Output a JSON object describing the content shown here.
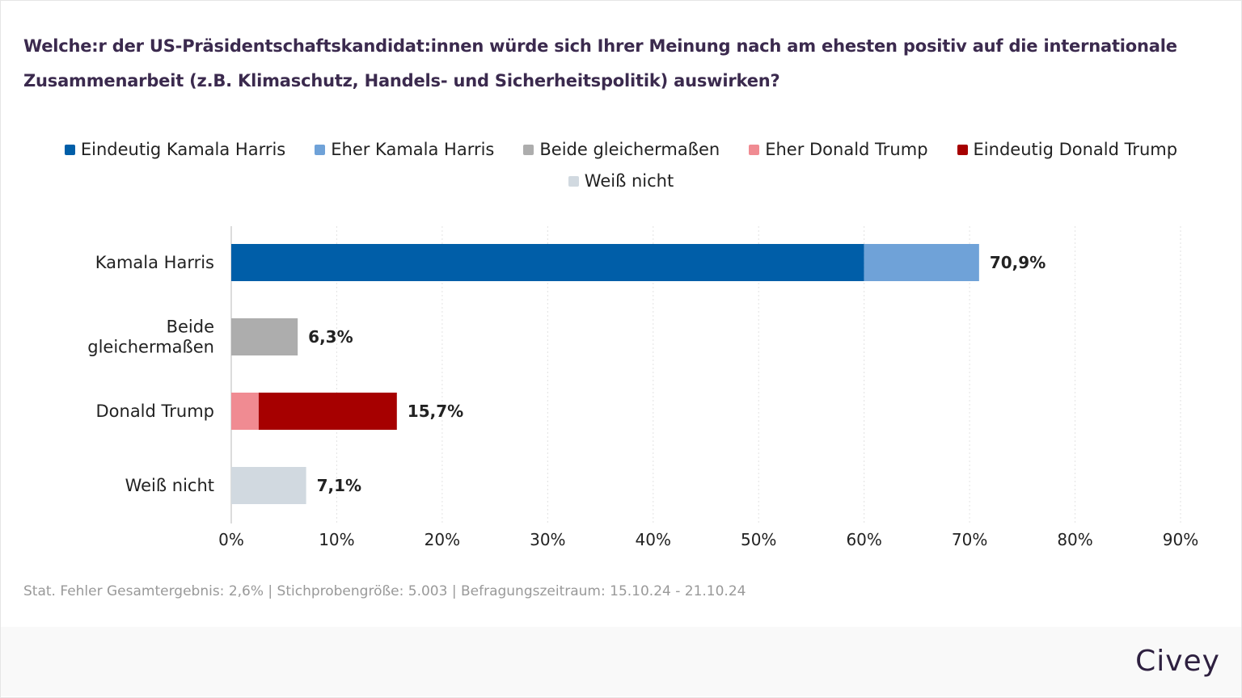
{
  "title": "Welche:r der US-Präsidentschaftskandidat:innen würde sich Ihrer Meinung nach am ehesten positiv auf die internationale Zusammenarbeit (z.B. Klimaschutz, Handels- und Sicherheitspolitik) auswirken?",
  "legend": [
    {
      "label": "Eindeutig Kamala Harris",
      "color": "#005ea8"
    },
    {
      "label": "Eher Kamala Harris",
      "color": "#6fa2d8"
    },
    {
      "label": "Beide gleichermaßen",
      "color": "#adadad"
    },
    {
      "label": "Eher Donald Trump",
      "color": "#f08b92"
    },
    {
      "label": "Eindeutig Donald Trump",
      "color": "#a60000"
    },
    {
      "label": "Weiß nicht",
      "color": "#d1d9e0"
    }
  ],
  "chart_data": {
    "type": "bar",
    "orientation": "horizontal",
    "stacked": true,
    "title": "Welche:r der US-Präsidentschaftskandidat:innen würde sich Ihrer Meinung nach am ehesten positiv auf die internationale Zusammenarbeit (z.B. Klimaschutz, Handels- und Sicherheitspolitik) auswirken?",
    "categories": [
      "Kamala Harris",
      "Beide gleichermaßen",
      "Donald Trump",
      "Weiß nicht"
    ],
    "category_lines": [
      [
        "Kamala Harris"
      ],
      [
        "Beide",
        "gleichermaßen"
      ],
      [
        "Donald Trump"
      ],
      [
        "Weiß nicht"
      ]
    ],
    "bars": [
      {
        "category": "Kamala Harris",
        "segments": [
          {
            "series": "Eindeutig Kamala Harris",
            "value": 60.0,
            "color": "#005ea8"
          },
          {
            "series": "Eher Kamala Harris",
            "value": 10.9,
            "color": "#6fa2d8"
          }
        ],
        "total_label": "70,9%"
      },
      {
        "category": "Beide gleichermaßen",
        "segments": [
          {
            "series": "Beide gleichermaßen",
            "value": 6.3,
            "color": "#adadad"
          }
        ],
        "total_label": "6,3%"
      },
      {
        "category": "Donald Trump",
        "segments": [
          {
            "series": "Eher Donald Trump",
            "value": 2.6,
            "color": "#f08b92"
          },
          {
            "series": "Eindeutig Donald Trump",
            "value": 13.1,
            "color": "#a60000"
          }
        ],
        "total_label": "15,7%"
      },
      {
        "category": "Weiß nicht",
        "segments": [
          {
            "series": "Weiß nicht",
            "value": 7.1,
            "color": "#d1d9e0"
          }
        ],
        "total_label": "7,1%"
      }
    ],
    "xlim": [
      0,
      90
    ],
    "xticks": [
      0,
      10,
      20,
      30,
      40,
      50,
      60,
      70,
      80,
      90
    ],
    "xtick_labels": [
      "0%",
      "10%",
      "20%",
      "30%",
      "40%",
      "50%",
      "60%",
      "70%",
      "80%",
      "90%"
    ],
    "xlabel": "",
    "ylabel": "",
    "grid": "vertical dotted",
    "legend_position": "top-center"
  },
  "footnote": "Stat. Fehler Gesamtergebnis: 2,6% | Stichprobengröße: 5.003 | Befragungszeitraum: 15.10.24 - 21.10.24",
  "brand": "Civey"
}
